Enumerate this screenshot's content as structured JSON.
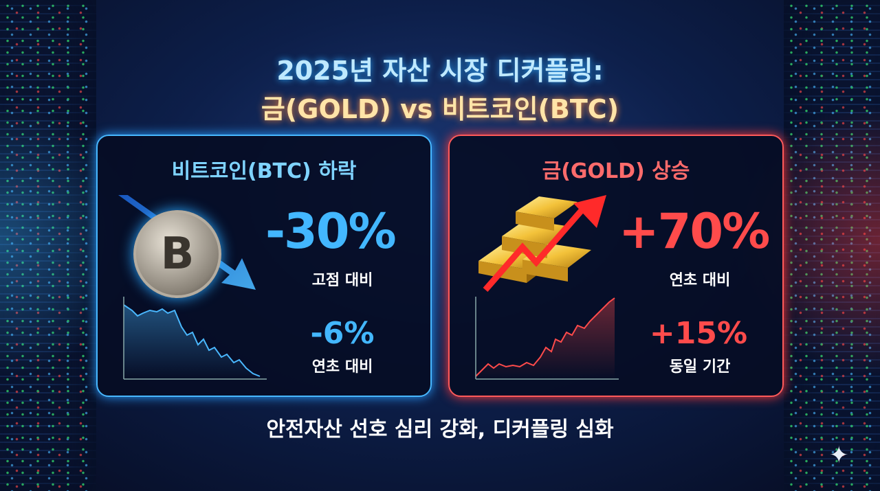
{
  "title": {
    "line1": "2025년 자산 시장 디커플링:",
    "line2": "금(GOLD) vs 비트코인(BTC)"
  },
  "btc_card": {
    "heading": "비트코인(BTC) 하락",
    "icon": "bitcoin-coin-icon",
    "coin_symbol": "B",
    "main_value": "-30%",
    "main_label": "고점 대비",
    "secondary_value": "-6%",
    "secondary_label": "연초 대비",
    "accent_color": "#43b7ff"
  },
  "gold_card": {
    "heading": "금(GOLD) 상승",
    "icon": "gold-bars-icon",
    "main_value": "+70%",
    "main_label": "연초 대비",
    "secondary_value": "+15%",
    "secondary_label": "동일 기간",
    "accent_color": "#ff4b4b"
  },
  "footer": "안전자산 선호 심리 강화, 디커플링 심화",
  "watermark_icon": "sparkle-icon"
}
